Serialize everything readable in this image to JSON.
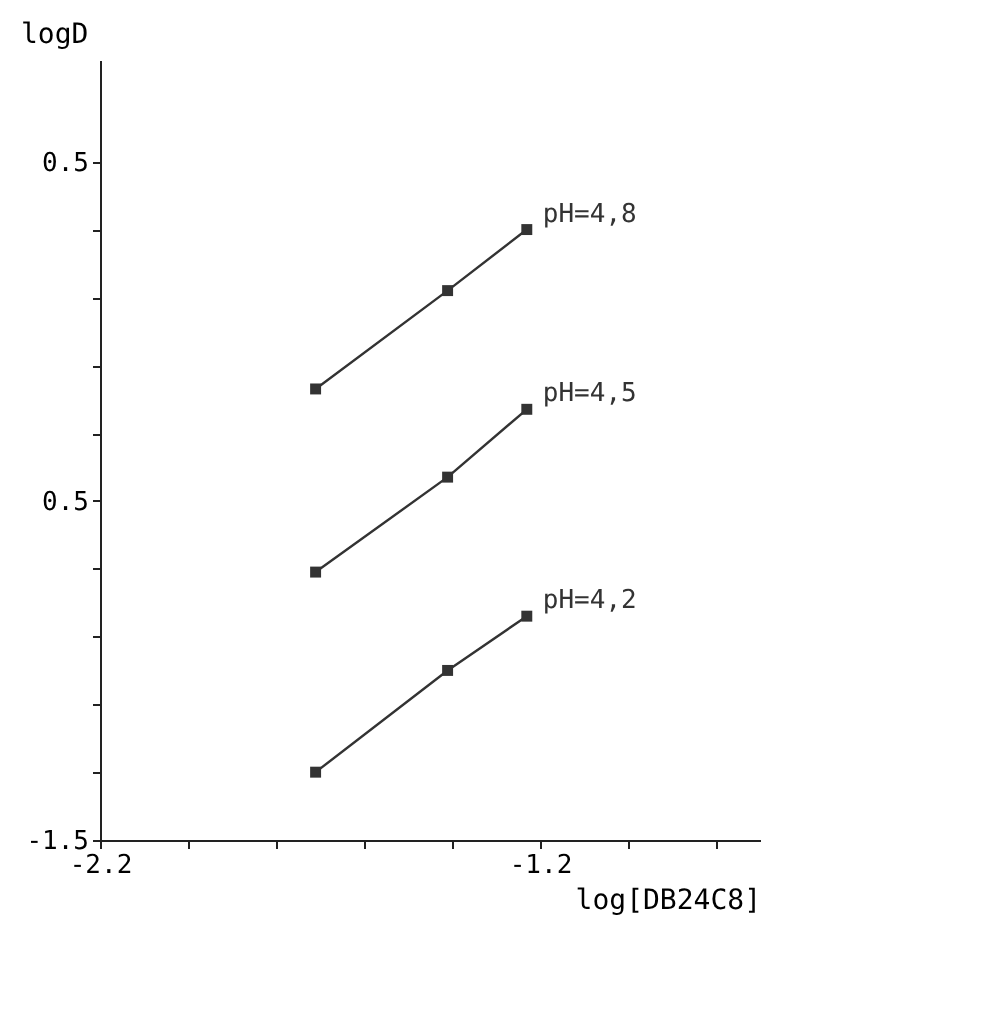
{
  "chart_data": {
    "type": "line",
    "xlabel": "log[DB24C8]",
    "ylabel": "logD",
    "x": [
      -1.71,
      -1.41,
      -1.23
    ],
    "series": [
      {
        "name": "pH=4,8",
        "color": "#333333",
        "values": [
          -0.17,
          0.12,
          0.3
        ]
      },
      {
        "name": "pH=4,5",
        "color": "#333333",
        "values": [
          -0.71,
          -0.43,
          -0.23
        ]
      },
      {
        "name": "pH=4,2",
        "color": "#333333",
        "values": [
          -1.3,
          -1.0,
          -0.84
        ]
      }
    ],
    "xlim": [
      -2.2,
      -0.7
    ],
    "xticks": [
      -2.2,
      {
        "value": -2.0,
        "label": null
      },
      {
        "value": -1.8,
        "label": null
      },
      {
        "value": -1.6,
        "label": null
      },
      {
        "value": -1.4,
        "label": null
      },
      -1.2,
      {
        "value": -1.0,
        "label": null
      },
      {
        "value": -0.8,
        "label": null
      }
    ],
    "ylim": [
      -1.5,
      0.8
    ],
    "yticks": [
      -1.5,
      {
        "value": -1.3,
        "label": null
      },
      {
        "value": -1.1,
        "label": null
      },
      {
        "value": -0.9,
        "label": null
      },
      {
        "value": -0.7,
        "label": null
      },
      {
        "value": -0.5,
        "label": "0.5"
      },
      {
        "value": -0.3,
        "label": null
      },
      {
        "value": -0.1,
        "label": null
      },
      {
        "value": 0.1,
        "label": null
      },
      {
        "value": 0.3,
        "label": null
      },
      0.5
    ],
    "marker": "square",
    "line_style": "solid",
    "grid": false
  }
}
